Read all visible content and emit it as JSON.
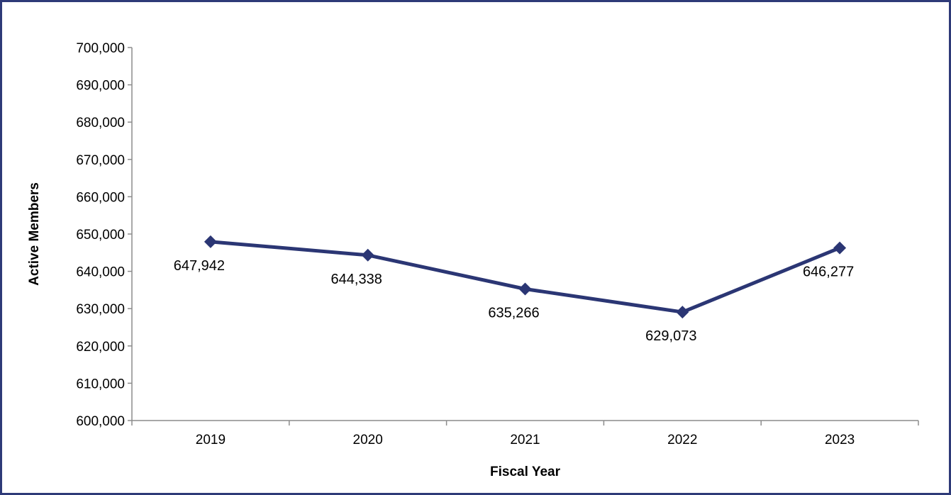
{
  "chart_data": {
    "type": "line",
    "categories": [
      "2019",
      "2020",
      "2021",
      "2022",
      "2023"
    ],
    "series": [
      {
        "values": [
          647942,
          644338,
          635266,
          629073,
          646277
        ]
      }
    ],
    "data_labels": [
      "647,942",
      "644,338",
      "635,266",
      "629,073",
      "646,277"
    ],
    "y_ticks": [
      "600,000",
      "610,000",
      "620,000",
      "630,000",
      "640,000",
      "650,000",
      "660,000",
      "670,000",
      "680,000",
      "690,000",
      "700,000"
    ],
    "xlabel": "Fiscal Year",
    "ylabel": "Active Members",
    "ylim": [
      600000,
      700000
    ],
    "grid": false,
    "marker": "diamond",
    "line_color": "#2b3674",
    "frame_color": "#2e3a78"
  }
}
